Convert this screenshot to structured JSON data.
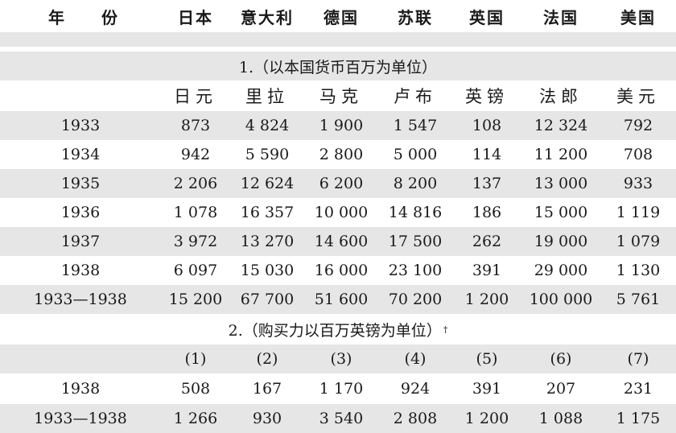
{
  "header": {
    "year_a": "年",
    "year_b": "份",
    "countries": [
      "日本",
      "意大利",
      "德国",
      "苏联",
      "英国",
      "法国",
      "美国"
    ]
  },
  "section1": {
    "title": "1.（以本国货币百万为单位）",
    "units": [
      "日元",
      "里拉",
      "马克",
      "卢布",
      "英镑",
      "法郎",
      "美元"
    ],
    "rows": [
      {
        "year": "1933",
        "values": [
          "873",
          "4 824",
          "1 900",
          "1 547",
          "108",
          "12 324",
          "792"
        ]
      },
      {
        "year": "1934",
        "values": [
          "942",
          "5 590",
          "2 800",
          "5 000",
          "114",
          "11 200",
          "708"
        ]
      },
      {
        "year": "1935",
        "values": [
          "2 206",
          "12 624",
          "6 200",
          "8 200",
          "137",
          "13 000",
          "933"
        ]
      },
      {
        "year": "1936",
        "values": [
          "1 078",
          "16 357",
          "10 000",
          "14 816",
          "186",
          "15 000",
          "1 119"
        ]
      },
      {
        "year": "1937",
        "values": [
          "3 972",
          "13 270",
          "14 600",
          "17 500",
          "262",
          "19 000",
          "1 079"
        ]
      },
      {
        "year": "1938",
        "values": [
          "6 097",
          "15 030",
          "16 000",
          "23 100",
          "391",
          "29 000",
          "1 130"
        ]
      },
      {
        "year": "1933—1938",
        "values": [
          "15 200",
          "67 700",
          "51 600",
          "70 200",
          "1 200",
          "100 000",
          "5 761"
        ]
      }
    ]
  },
  "section2": {
    "title": "2.（购买力以百万英镑为单位）",
    "dagger": "†",
    "column_numbers": [
      "(1)",
      "(2)",
      "(3)",
      "(4)",
      "(5)",
      "(6)",
      "(7)"
    ],
    "rows": [
      {
        "year": "1938",
        "values": [
          "508",
          "167",
          "1 170",
          "924",
          "391",
          "207",
          "231"
        ]
      },
      {
        "year": "1933—1938",
        "values": [
          "1 266",
          "930",
          "3 540",
          "2 808",
          "1 200",
          "1 088",
          "1 175"
        ]
      }
    ]
  }
}
